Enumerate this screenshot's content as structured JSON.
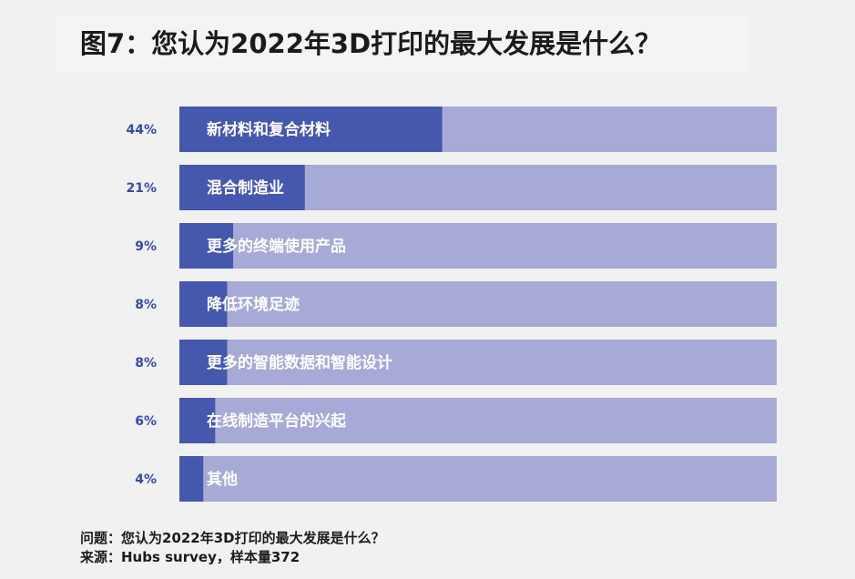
{
  "title": "图7：您认为2022年3D打印的最大发展是什么？",
  "footer": {
    "question": "问题：您认为2022年3D打印的最大发展是什么？",
    "source": "来源：Hubs survey，样本量372"
  },
  "colors": {
    "bar_fill": "#4558ad",
    "bar_track": "#a7aad6",
    "bar_label": "#ffffff",
    "percent_label": "#3a4aa8"
  },
  "chart_data": {
    "type": "bar",
    "orientation": "horizontal",
    "xlim": [
      0,
      100
    ],
    "categories": [
      "新材料和复合材料",
      "混合制造业",
      "更多的终端使用产品",
      "降低环境足迹",
      "更多的智能数据和智能设计",
      "在线制造平台的兴起",
      "其他"
    ],
    "values": [
      44,
      21,
      9,
      8,
      8,
      6,
      4
    ],
    "value_labels": [
      "44%",
      "21%",
      "9%",
      "8%",
      "8%",
      "6%",
      "4%"
    ]
  }
}
